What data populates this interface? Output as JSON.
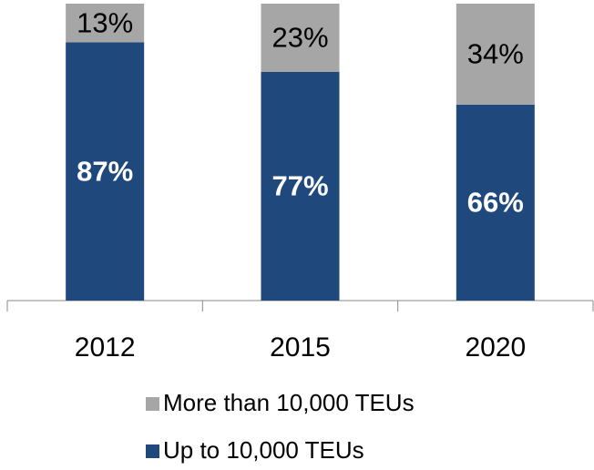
{
  "chart_data": {
    "type": "stacked_bar",
    "categories": [
      "2012",
      "2015",
      "2020"
    ],
    "series": [
      {
        "name": "Up to 10,000 TEUs",
        "color": "#1f497d",
        "values": [
          87,
          77,
          66
        ],
        "value_labels": [
          "87%",
          "77%",
          "66%"
        ]
      },
      {
        "name": "More than 10,000 TEUs",
        "color": "#a6a6a6",
        "values": [
          13,
          23,
          34
        ],
        "value_labels": [
          "13%",
          "23%",
          "34%"
        ]
      }
    ]
  }
}
